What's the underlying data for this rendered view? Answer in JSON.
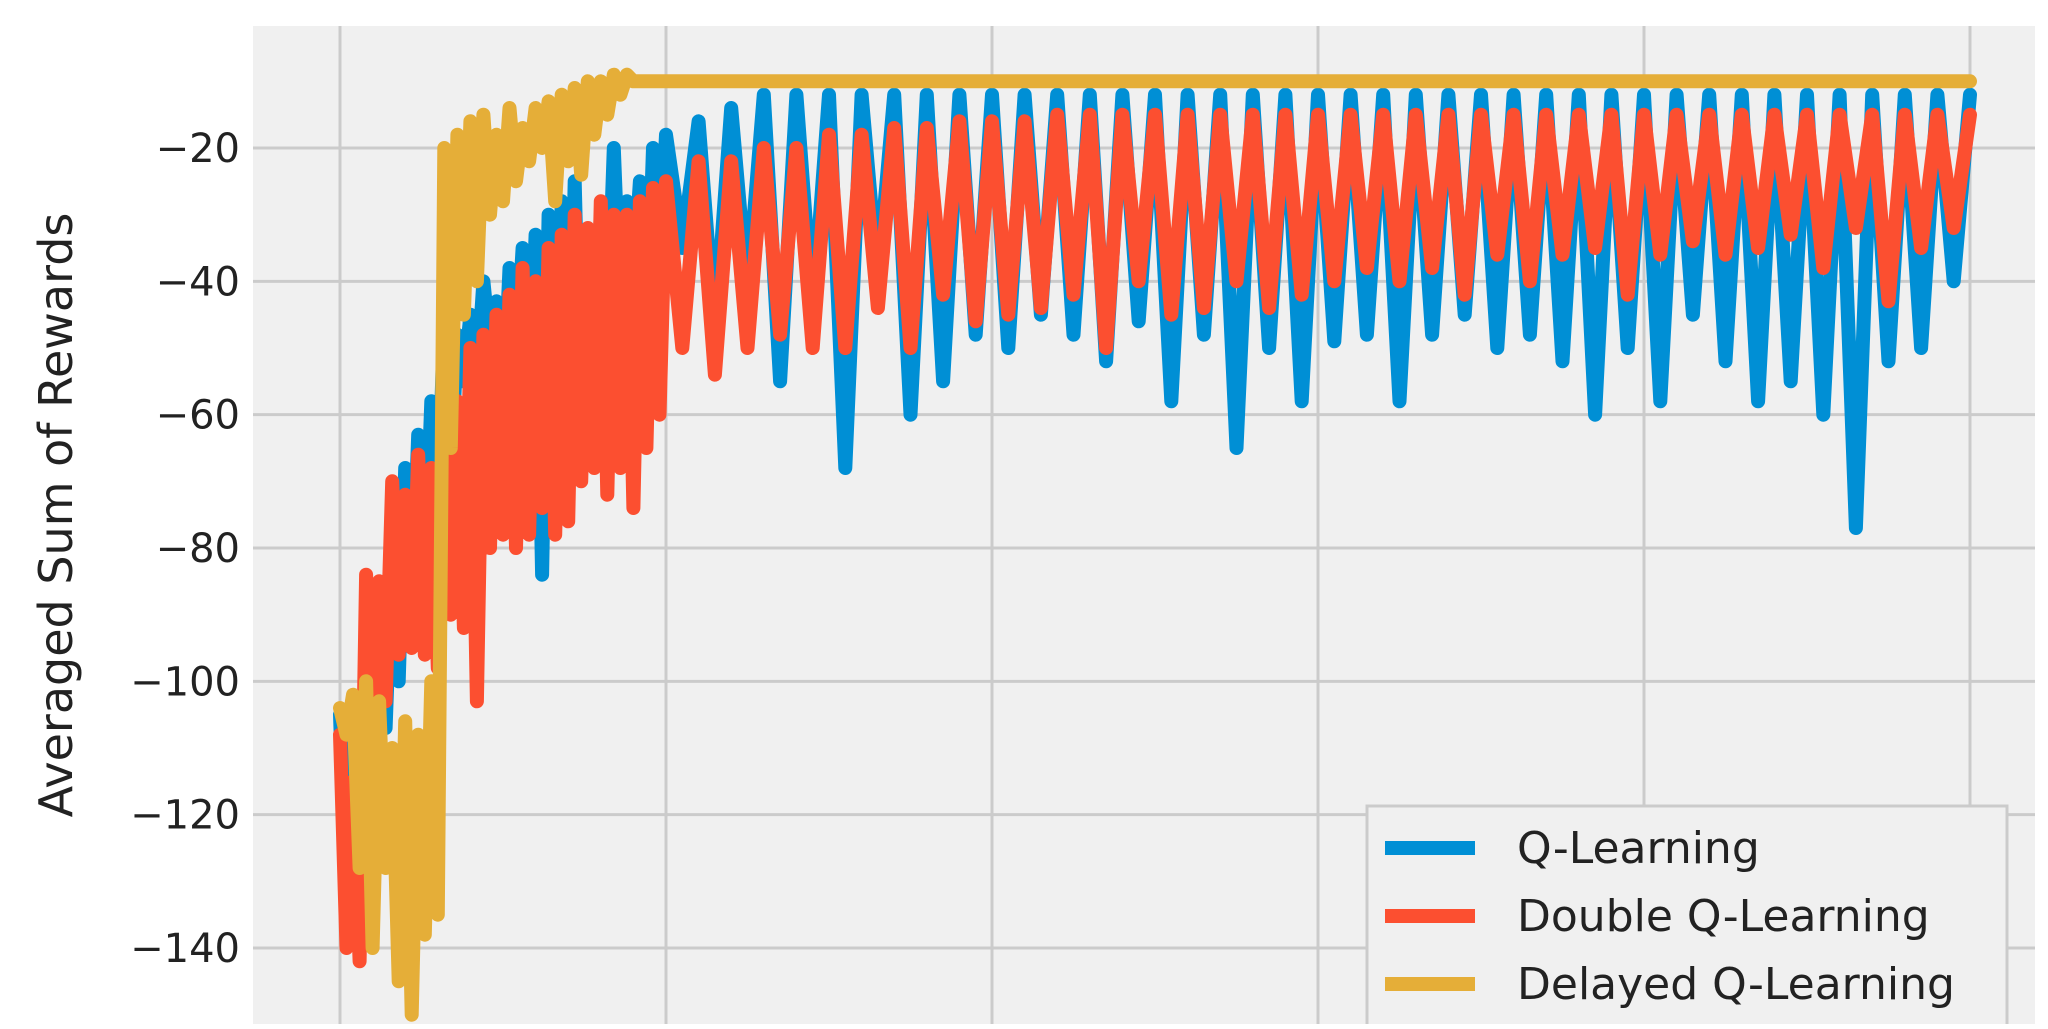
{
  "chart_data": {
    "type": "line",
    "title": "",
    "xlabel": "",
    "ylabel": "Averaged Sum of Rewards",
    "xlim": [
      -1,
      48
    ],
    "ylim": [
      -150,
      -7
    ],
    "x_gridlines": [
      0,
      10,
      20,
      30,
      40,
      50
    ],
    "yticks": [
      -20,
      -40,
      -60,
      -80,
      -100,
      -120,
      -140
    ],
    "ytick_labels": [
      "−20",
      "−40",
      "−60",
      "−80",
      "−100",
      "−120",
      "−140"
    ],
    "grid": true,
    "legend_position": "bottom-right",
    "colors": {
      "background": "#f0f0f0",
      "grid": "#cbcbcb"
    },
    "series": [
      {
        "name": "Q-Learning",
        "color": "#008fd5",
        "x": [
          0,
          0.2,
          0.4,
          0.6,
          0.8,
          1,
          1.2,
          1.4,
          1.6,
          1.8,
          2,
          2.2,
          2.4,
          2.6,
          2.8,
          3,
          3.2,
          3.4,
          3.6,
          3.8,
          4,
          4.2,
          4.4,
          4.6,
          4.8,
          5,
          5.2,
          5.4,
          5.6,
          5.8,
          6,
          6.2,
          6.4,
          6.6,
          6.8,
          7,
          7.2,
          7.4,
          7.6,
          7.8,
          8,
          8.2,
          8.4,
          8.6,
          8.8,
          9,
          9.2,
          9.4,
          9.6,
          9.8,
          10,
          10.5,
          11,
          11.5,
          12,
          12.5,
          13,
          13.5,
          14,
          14.5,
          15,
          15.5,
          16,
          16.5,
          17,
          17.5,
          18,
          18.5,
          19,
          19.5,
          20,
          20.5,
          21,
          21.5,
          22,
          22.5,
          23,
          23.5,
          24,
          24.5,
          25,
          25.5,
          26,
          26.5,
          27,
          27.5,
          28,
          28.5,
          29,
          29.5,
          30,
          30.5,
          31,
          31.5,
          32,
          32.5,
          33,
          33.5,
          34,
          34.5,
          35,
          35.5,
          36,
          36.5,
          37,
          37.5,
          38,
          38.5,
          39,
          39.5,
          40,
          40.5,
          41,
          41.5,
          42,
          42.5,
          43,
          43.5,
          44,
          44.5,
          45,
          45.5,
          46,
          46.5,
          47,
          47.5,
          48,
          48.5,
          49,
          49.5,
          50
        ],
        "y": [
          -105,
          -133,
          -110,
          -135,
          -115,
          -103,
          -95,
          -107,
          -80,
          -100,
          -68,
          -90,
          -63,
          -85,
          -58,
          -75,
          -45,
          -68,
          -48,
          -55,
          -45,
          -55,
          -40,
          -50,
          -43,
          -60,
          -38,
          -52,
          -35,
          -58,
          -33,
          -84,
          -30,
          -75,
          -28,
          -70,
          -25,
          -65,
          -35,
          -50,
          -30,
          -48,
          -20,
          -45,
          -28,
          -40,
          -25,
          -50,
          -20,
          -38,
          -18,
          -35,
          -16,
          -48,
          -14,
          -42,
          -12,
          -55,
          -12,
          -45,
          -12,
          -68,
          -12,
          -40,
          -12,
          -60,
          -12,
          -55,
          -12,
          -48,
          -12,
          -50,
          -12,
          -45,
          -12,
          -48,
          -12,
          -52,
          -12,
          -46,
          -12,
          -58,
          -12,
          -48,
          -12,
          -65,
          -12,
          -50,
          -12,
          -58,
          -12,
          -49,
          -12,
          -48,
          -12,
          -58,
          -12,
          -48,
          -12,
          -45,
          -12,
          -50,
          -12,
          -48,
          -12,
          -52,
          -12,
          -60,
          -12,
          -50,
          -12,
          -58,
          -12,
          -45,
          -12,
          -52,
          -12,
          -58,
          -12,
          -55,
          -12,
          -60,
          -12,
          -77,
          -12,
          -52,
          -12,
          -50,
          -12,
          -40,
          -12
        ],
        "end_x": 50
      },
      {
        "name": "Double Q-Learning",
        "color": "#fc4f30",
        "x": [
          0,
          0.2,
          0.4,
          0.6,
          0.8,
          1,
          1.2,
          1.4,
          1.6,
          1.8,
          2,
          2.2,
          2.4,
          2.6,
          2.8,
          3,
          3.2,
          3.4,
          3.6,
          3.8,
          4,
          4.2,
          4.4,
          4.6,
          4.8,
          5,
          5.2,
          5.4,
          5.6,
          5.8,
          6,
          6.2,
          6.4,
          6.6,
          6.8,
          7,
          7.2,
          7.4,
          7.6,
          7.8,
          8,
          8.2,
          8.4,
          8.6,
          8.8,
          9,
          9.2,
          9.4,
          9.6,
          9.8,
          10,
          10.5,
          11,
          11.5,
          12,
          12.5,
          13,
          13.5,
          14,
          14.5,
          15,
          15.5,
          16,
          16.5,
          17,
          17.5,
          18,
          18.5,
          19,
          19.5,
          20,
          20.5,
          21,
          21.5,
          22,
          22.5,
          23,
          23.5,
          24,
          24.5,
          25,
          25.5,
          26,
          26.5,
          27,
          27.5,
          28,
          28.5,
          29,
          29.5,
          30,
          30.5,
          31,
          31.5,
          32,
          32.5,
          33,
          33.5,
          34,
          34.5,
          35,
          35.5,
          36,
          36.5,
          37,
          37.5,
          38,
          38.5,
          39,
          39.5,
          40,
          40.5,
          41,
          41.5,
          42,
          42.5,
          43,
          43.5,
          44,
          44.5,
          45,
          45.5,
          46,
          46.5,
          47,
          47.5,
          48,
          48.5,
          49,
          49.5,
          50
        ],
        "y": [
          -108,
          -140,
          -115,
          -142,
          -84,
          -120,
          -85,
          -103,
          -70,
          -96,
          -72,
          -95,
          -66,
          -96,
          -68,
          -98,
          -62,
          -90,
          -58,
          -92,
          -50,
          -103,
          -48,
          -80,
          -45,
          -78,
          -42,
          -80,
          -38,
          -78,
          -40,
          -74,
          -35,
          -78,
          -33,
          -76,
          -30,
          -70,
          -32,
          -68,
          -28,
          -72,
          -30,
          -68,
          -30,
          -74,
          -28,
          -65,
          -26,
          -60,
          -25,
          -50,
          -22,
          -54,
          -22,
          -50,
          -20,
          -48,
          -20,
          -50,
          -18,
          -50,
          -18,
          -44,
          -17,
          -50,
          -17,
          -42,
          -16,
          -46,
          -16,
          -45,
          -16,
          -44,
          -15,
          -42,
          -15,
          -50,
          -15,
          -40,
          -15,
          -45,
          -15,
          -44,
          -15,
          -40,
          -15,
          -44,
          -15,
          -42,
          -15,
          -40,
          -15,
          -38,
          -15,
          -40,
          -15,
          -38,
          -15,
          -42,
          -15,
          -36,
          -15,
          -40,
          -15,
          -36,
          -15,
          -35,
          -15,
          -42,
          -15,
          -36,
          -15,
          -34,
          -15,
          -36,
          -15,
          -35,
          -15,
          -33,
          -15,
          -38,
          -15,
          -32,
          -15,
          -43,
          -15,
          -35,
          -15,
          -32,
          -15
        ],
        "end_x": 50
      },
      {
        "name": "Delayed Q-Learning",
        "color": "#e5ae38",
        "x": [
          0,
          0.2,
          0.4,
          0.6,
          0.8,
          1,
          1.2,
          1.4,
          1.6,
          1.8,
          2,
          2.2,
          2.4,
          2.6,
          2.8,
          3,
          3.2,
          3.4,
          3.6,
          3.8,
          4,
          4.2,
          4.4,
          4.6,
          4.8,
          5,
          5.2,
          5.4,
          5.6,
          5.8,
          6,
          6.2,
          6.4,
          6.6,
          6.8,
          7,
          7.2,
          7.4,
          7.6,
          7.8,
          8,
          8.2,
          8.4,
          8.6,
          8.8,
          9,
          10,
          20,
          30,
          40,
          50
        ],
        "y": [
          -104,
          -108,
          -102,
          -128,
          -100,
          -140,
          -103,
          -128,
          -110,
          -145,
          -106,
          -150,
          -108,
          -138,
          -100,
          -135,
          -20,
          -65,
          -18,
          -45,
          -16,
          -40,
          -15,
          -30,
          -18,
          -28,
          -14,
          -25,
          -17,
          -22,
          -14,
          -20,
          -13,
          -28,
          -12,
          -22,
          -11,
          -24,
          -10,
          -18,
          -10,
          -15,
          -9,
          -12,
          -9,
          -10,
          -10,
          -10,
          -10,
          -10,
          -10
        ],
        "end_x": 50
      }
    ]
  }
}
